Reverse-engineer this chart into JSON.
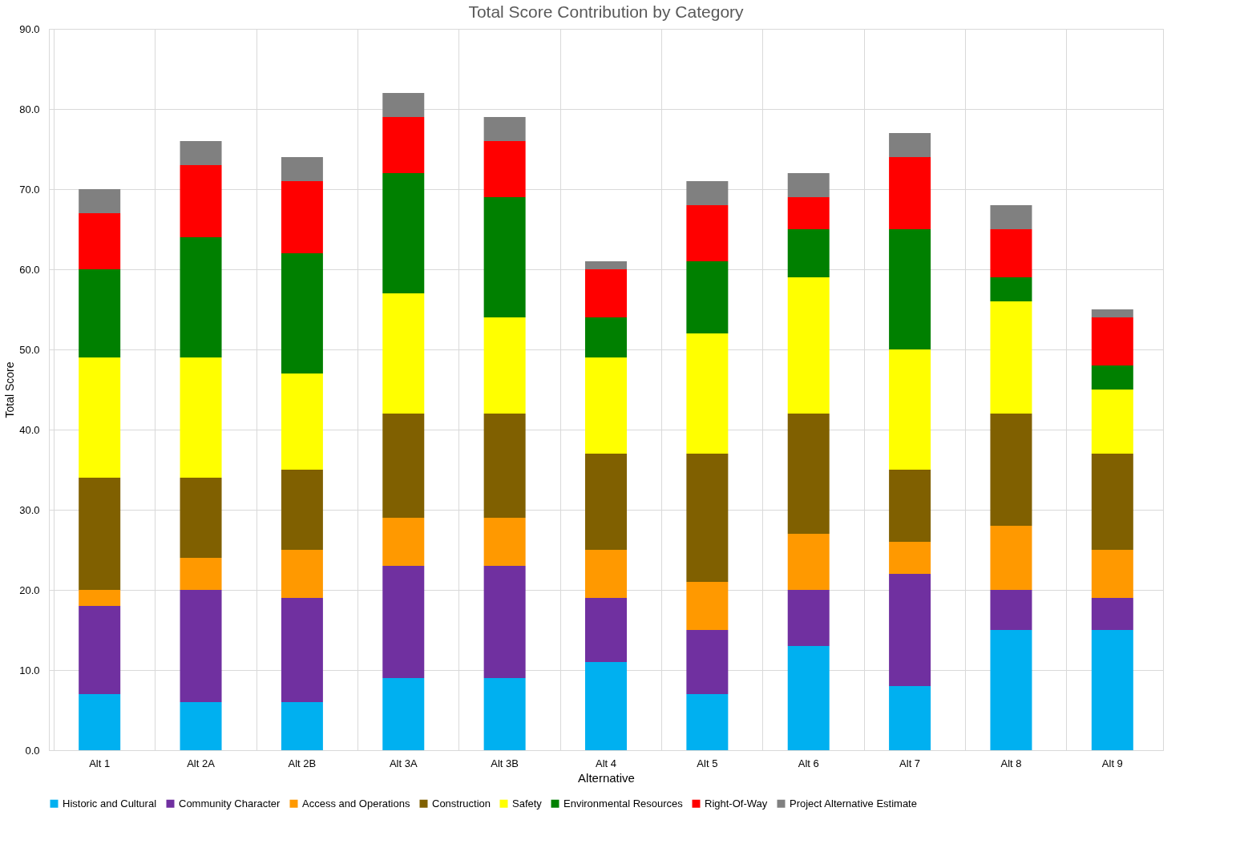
{
  "chart_data": {
    "type": "bar",
    "title": "Total Score Contribution by Category",
    "xlabel": "Alternative",
    "ylabel": "Total Score",
    "categories": [
      "Alt 1",
      "Alt 2A",
      "Alt 2B",
      "Alt 3A",
      "Alt 3B",
      "Alt 4",
      "Alt 5",
      "Alt 6",
      "Alt 7",
      "Alt 8",
      "Alt 9"
    ],
    "stacked": true,
    "series": [
      {
        "name": "Historic and Cultural",
        "color": "#00b0f0",
        "values": [
          7,
          6,
          6,
          9,
          9,
          11,
          7,
          13,
          8,
          15,
          15
        ]
      },
      {
        "name": "Community Character",
        "color": "#7030a0",
        "values": [
          11,
          14,
          13,
          14,
          14,
          8,
          8,
          7,
          14,
          5,
          4
        ]
      },
      {
        "name": "Access and Operations",
        "color": "#ff9900",
        "values": [
          2,
          4,
          6,
          6,
          6,
          6,
          6,
          7,
          4,
          8,
          6
        ]
      },
      {
        "name": "Construction",
        "color": "#806000",
        "values": [
          14,
          10,
          10,
          13,
          13,
          12,
          16,
          15,
          9,
          14,
          12
        ]
      },
      {
        "name": "Safety",
        "color": "#ffff00",
        "values": [
          15,
          15,
          12,
          15,
          12,
          12,
          15,
          17,
          15,
          14,
          8
        ]
      },
      {
        "name": "Environmental Resources",
        "color": "#008000",
        "values": [
          11,
          15,
          15,
          15,
          15,
          5,
          9,
          6,
          15,
          3,
          3
        ]
      },
      {
        "name": "Right-Of-Way",
        "color": "#ff0000",
        "values": [
          7,
          9,
          9,
          7,
          7,
          6,
          7,
          4,
          9,
          6,
          6
        ]
      },
      {
        "name": "Project Alternative Estimate",
        "color": "#808080",
        "values": [
          3,
          3,
          3,
          3,
          3,
          1,
          3,
          3,
          3,
          3,
          1
        ]
      }
    ],
    "ylim": [
      0,
      90
    ],
    "yticks": [
      {
        "value": 0,
        "label": "0.0"
      },
      {
        "value": 10,
        "label": "10.0"
      },
      {
        "value": 20,
        "label": "20.0"
      },
      {
        "value": 30,
        "label": "30.0"
      },
      {
        "value": 40,
        "label": "40.0"
      },
      {
        "value": 50,
        "label": "50.0"
      },
      {
        "value": 60,
        "label": "60.0"
      },
      {
        "value": 70,
        "label": "70.0"
      },
      {
        "value": 80,
        "label": "80.0"
      },
      {
        "value": 90,
        "label": "90.0"
      }
    ],
    "grid": true,
    "legend": "bottom"
  }
}
